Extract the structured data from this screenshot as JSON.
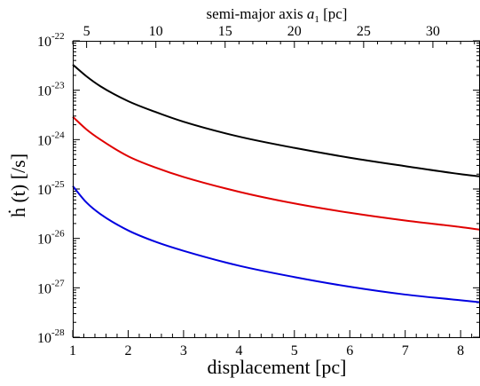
{
  "chart_data": {
    "type": "line",
    "title": "",
    "xlabel": "displacement [pc]",
    "ylabel": "ḣ (t) [/s]",
    "top_xlabel_main": "semi-major axis ",
    "top_xlabel_var": "a",
    "top_xlabel_sub": "1",
    "top_xlabel_unit": " [pc]",
    "xlim": [
      1,
      8.35
    ],
    "ylim_exponent": [
      -28,
      -22
    ],
    "yscale": "log",
    "grid": false,
    "x_ticks": [
      1,
      2,
      3,
      4,
      5,
      6,
      7,
      8
    ],
    "x_tick_labels": [
      "1",
      "2",
      "3",
      "4",
      "5",
      "6",
      "7",
      "8"
    ],
    "top_x_ticks": [
      5,
      10,
      15,
      20,
      25,
      30
    ],
    "top_x_tick_labels": [
      "5",
      "10",
      "15",
      "20",
      "25",
      "30"
    ],
    "top_x_per_bottom_x": 4,
    "y_ticks_exponent": [
      -28,
      -27,
      -26,
      -25,
      -24,
      -23,
      -22
    ],
    "y_tick_base": "10",
    "y_tick_exponent_labels": [
      "-28",
      "-27",
      "-26",
      "-25",
      "-24",
      "-23",
      "-22"
    ],
    "series": [
      {
        "color": "#000000",
        "x": [
          1,
          1.25,
          1.5,
          2,
          2.5,
          3,
          4,
          5,
          6,
          7,
          8,
          8.35
        ],
        "y": [
          3.3e-23,
          1.9e-23,
          1.2e-23,
          6e-24,
          3.6e-24,
          2.3e-24,
          1.15e-24,
          6.8e-25,
          4.3e-25,
          2.9e-25,
          2e-25,
          1.8e-25
        ]
      },
      {
        "color": "#e00000",
        "x": [
          1,
          1.25,
          1.5,
          2,
          2.5,
          3,
          4,
          5,
          6,
          7,
          8,
          8.35
        ],
        "y": [
          2.9e-24,
          1.6e-24,
          1e-24,
          4.6e-25,
          2.7e-25,
          1.75e-25,
          8.8e-26,
          5.1e-26,
          3.3e-26,
          2.3e-26,
          1.7e-26,
          1.5e-26
        ]
      },
      {
        "color": "#0000e0",
        "x": [
          1,
          1.25,
          1.5,
          2,
          2.5,
          3,
          4,
          5,
          6,
          7,
          8,
          8.35
        ],
        "y": [
          1.15e-25,
          5.3e-26,
          3.1e-26,
          1.45e-26,
          8.5e-27,
          5.6e-27,
          2.8e-27,
          1.65e-27,
          1.05e-27,
          7.3e-28,
          5.6e-28,
          5.1e-28
        ]
      }
    ]
  }
}
